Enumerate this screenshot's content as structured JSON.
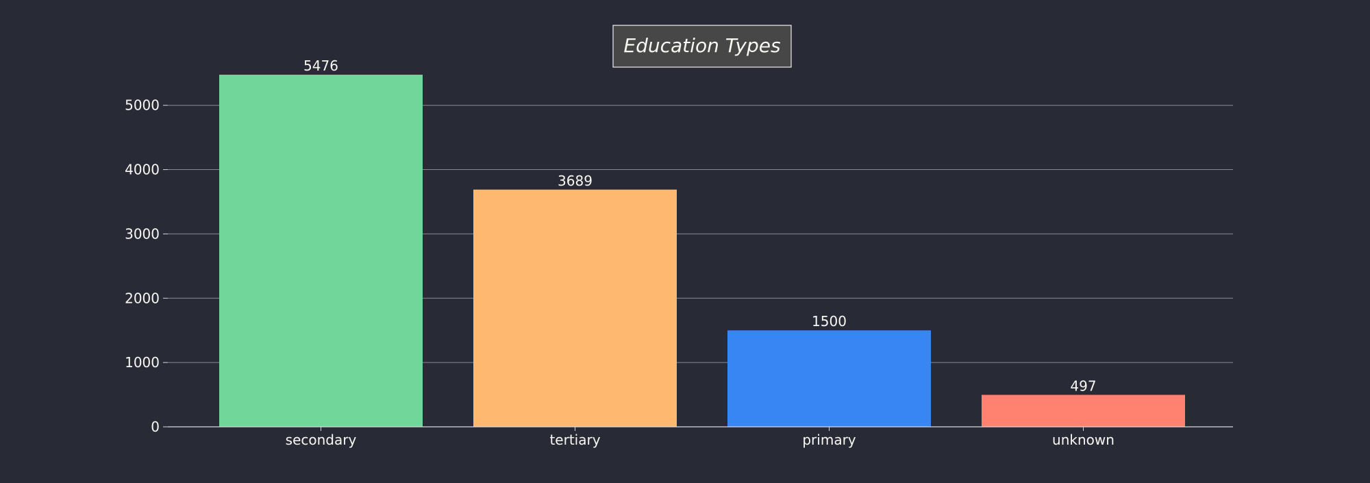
{
  "chart_data": {
    "type": "bar",
    "title": "Education Types",
    "xlabel": "",
    "ylabel": "",
    "categories": [
      "secondary",
      "tertiary",
      "primary",
      "unknown"
    ],
    "values": [
      5476,
      3689,
      1500,
      497
    ],
    "value_labels": [
      "5476",
      "3689",
      "1500",
      "497"
    ],
    "colors": [
      "#70d69a",
      "#ffb86f",
      "#3786f3",
      "#ff8170"
    ],
    "ylim": [
      0,
      5750
    ],
    "yticks": [
      0,
      1000,
      2000,
      3000,
      4000,
      5000
    ],
    "ytick_labels": [
      "0",
      "1000",
      "2000",
      "3000",
      "4000",
      "5000"
    ],
    "grid": "horizontal",
    "legend": "none"
  },
  "theme": {
    "background": "#282a36",
    "text": "#f8f8f2",
    "grid": "#8a8c94",
    "axis": "#d8d8d8",
    "title_box_fill": "#474747",
    "title_box_stroke": "#f0f0f0"
  }
}
